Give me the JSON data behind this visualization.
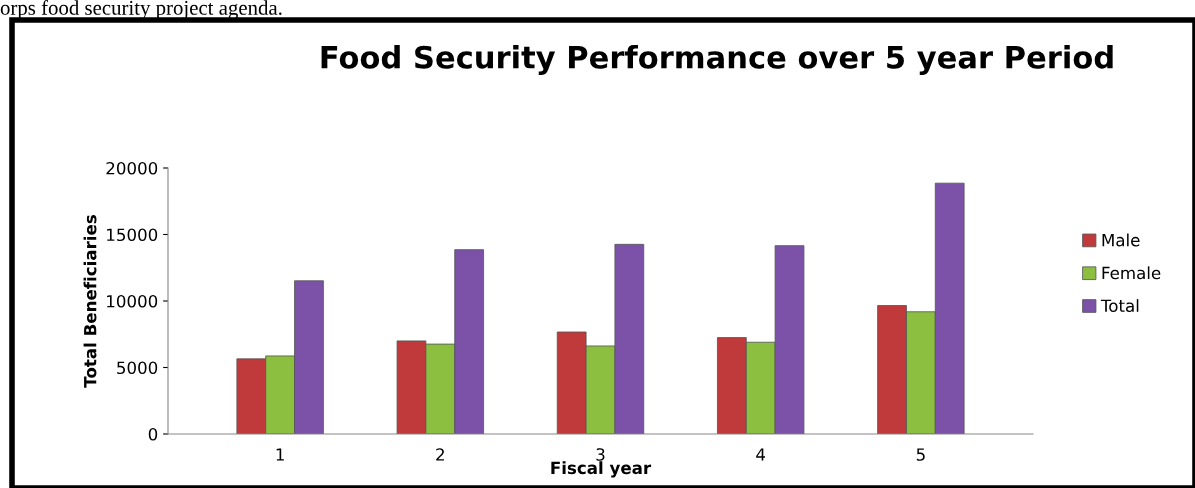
{
  "chart_data": {
    "type": "bar",
    "title": "Food Security Performance over 5 year Period",
    "xlabel": "Fiscal year",
    "ylabel": "Total Beneficiaries",
    "annotations": [
      "orps food security project agenda."
    ],
    "categories": [
      "1",
      "2",
      "3",
      "4",
      "5"
    ],
    "series": [
      {
        "name": "Male",
        "color": "#c0393b",
        "values": [
          5650,
          7000,
          7670,
          7250,
          9660
        ]
      },
      {
        "name": "Female",
        "color": "#8cbf3f",
        "values": [
          5870,
          6760,
          6620,
          6900,
          9190
        ]
      },
      {
        "name": "Total",
        "color": "#7b52a8",
        "values": [
          11520,
          13860,
          14260,
          14160,
          18860
        ]
      }
    ],
    "ylim": [
      0,
      20000
    ],
    "yticks": [
      0,
      5000,
      10000,
      15000,
      20000
    ],
    "grid": false,
    "legend": "right"
  }
}
